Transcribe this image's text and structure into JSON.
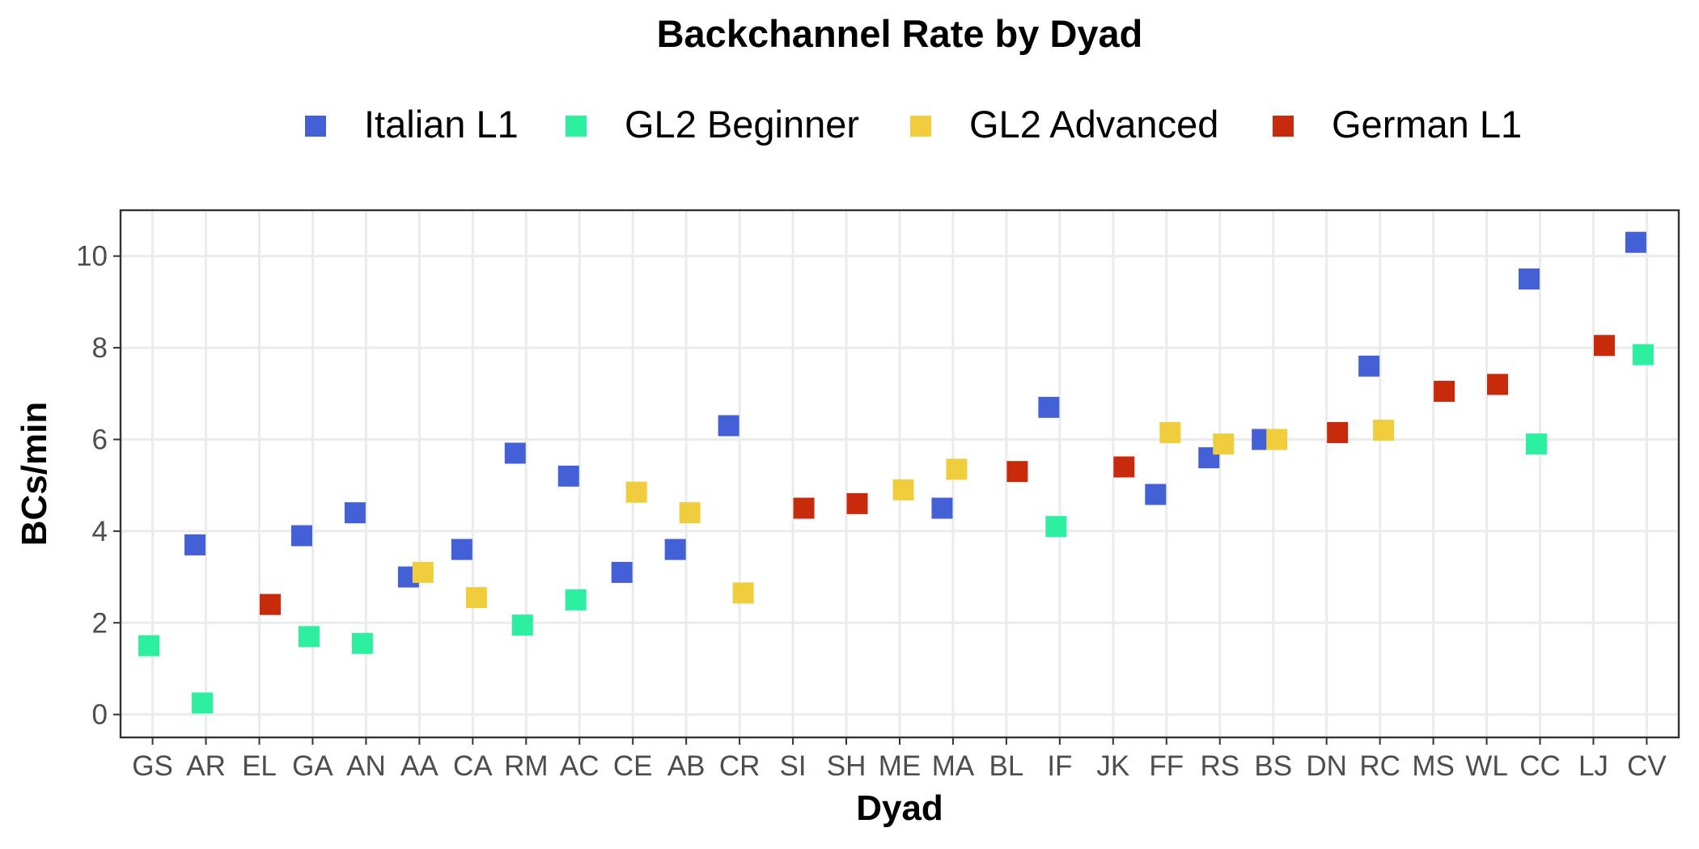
{
  "chart_data": {
    "type": "scatter",
    "title": "Backchannel Rate by Dyad",
    "xlabel": "Dyad",
    "ylabel": "BCs/min",
    "ylim": [
      -0.5,
      11
    ],
    "yticks": [
      0,
      2,
      4,
      6,
      8,
      10
    ],
    "grid": true,
    "legend_position": "top",
    "categories": [
      "GS",
      "AR",
      "EL",
      "GA",
      "AN",
      "AA",
      "CA",
      "RM",
      "AC",
      "CE",
      "AB",
      "CR",
      "SI",
      "SH",
      "ME",
      "MA",
      "BL",
      "IF",
      "JK",
      "FF",
      "RS",
      "BS",
      "DN",
      "RC",
      "MS",
      "WL",
      "CC",
      "LJ",
      "CV"
    ],
    "series": [
      {
        "name": "Italian L1",
        "color": "#4360D6",
        "points": [
          {
            "x": "AR",
            "y": 3.7
          },
          {
            "x": "GA",
            "y": 3.9
          },
          {
            "x": "AN",
            "y": 4.4
          },
          {
            "x": "AA",
            "y": 3.0
          },
          {
            "x": "CA",
            "y": 3.6
          },
          {
            "x": "RM",
            "y": 5.7
          },
          {
            "x": "AC",
            "y": 5.2
          },
          {
            "x": "CE",
            "y": 3.1
          },
          {
            "x": "AB",
            "y": 3.6
          },
          {
            "x": "CR",
            "y": 6.3
          },
          {
            "x": "MA",
            "y": 4.5
          },
          {
            "x": "IF",
            "y": 6.7
          },
          {
            "x": "FF",
            "y": 4.8
          },
          {
            "x": "RS",
            "y": 5.6
          },
          {
            "x": "BS",
            "y": 6.0
          },
          {
            "x": "RC",
            "y": 7.6
          },
          {
            "x": "CC",
            "y": 9.5
          },
          {
            "x": "CV",
            "y": 10.3
          }
        ]
      },
      {
        "name": "GL2 Beginner",
        "color": "#2DEFA0",
        "points": [
          {
            "x": "GS",
            "y": 1.5
          },
          {
            "x": "AR",
            "y": 0.25
          },
          {
            "x": "GA",
            "y": 1.7
          },
          {
            "x": "AN",
            "y": 1.55
          },
          {
            "x": "RM",
            "y": 1.95
          },
          {
            "x": "AC",
            "y": 2.5
          },
          {
            "x": "IF",
            "y": 4.1
          },
          {
            "x": "CC",
            "y": 5.9
          },
          {
            "x": "CV",
            "y": 7.85
          }
        ]
      },
      {
        "name": "GL2 Advanced",
        "color": "#F0CD3C",
        "points": [
          {
            "x": "AA",
            "y": 3.1
          },
          {
            "x": "CA",
            "y": 2.55
          },
          {
            "x": "CE",
            "y": 4.85
          },
          {
            "x": "AB",
            "y": 4.4
          },
          {
            "x": "CR",
            "y": 2.65
          },
          {
            "x": "ME",
            "y": 4.9
          },
          {
            "x": "MA",
            "y": 5.35
          },
          {
            "x": "FF",
            "y": 6.15
          },
          {
            "x": "RS",
            "y": 5.9
          },
          {
            "x": "BS",
            "y": 6.0
          },
          {
            "x": "RC",
            "y": 6.2
          }
        ]
      },
      {
        "name": "German L1",
        "color": "#C82A0C",
        "points": [
          {
            "x": "EL",
            "y": 2.4
          },
          {
            "x": "SI",
            "y": 4.5
          },
          {
            "x": "SH",
            "y": 4.6
          },
          {
            "x": "BL",
            "y": 5.3
          },
          {
            "x": "JK",
            "y": 5.4
          },
          {
            "x": "DN",
            "y": 6.15
          },
          {
            "x": "MS",
            "y": 7.05
          },
          {
            "x": "WL",
            "y": 7.2
          },
          {
            "x": "LJ",
            "y": 8.05
          }
        ]
      }
    ]
  }
}
